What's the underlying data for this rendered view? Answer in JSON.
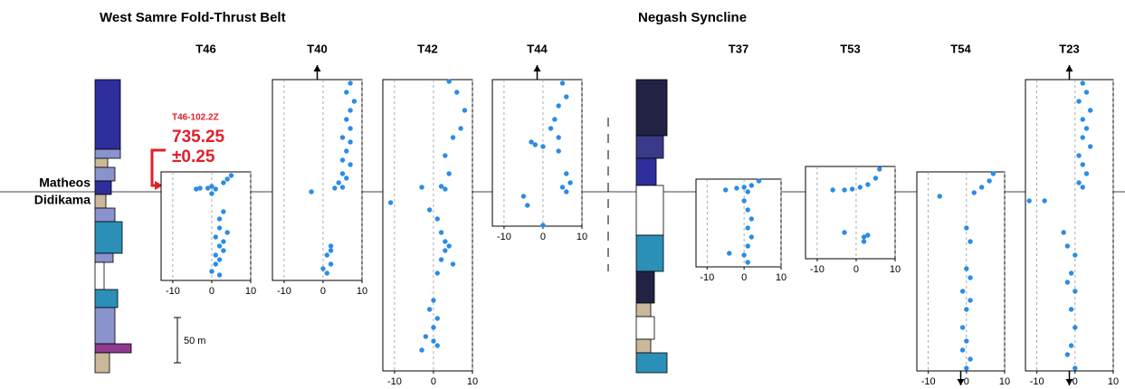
{
  "groups": [
    "West Samre Fold-Thrust Belt",
    "Negash Syncline"
  ],
  "horizon_label": [
    "Matheos",
    "Didikama"
  ],
  "scale_bar": "50 m",
  "date": {
    "sample": "T46-102.2Z",
    "age": "735.25",
    "error": "±0.25"
  },
  "chart_data": [
    {
      "type": "scatter",
      "title": "T46",
      "color": "#2b8ce6",
      "xlim": [
        -13,
        10
      ],
      "ylim": [
        -98,
        22
      ],
      "xticks": [
        -10,
        0,
        10
      ],
      "grid": true,
      "x": [
        -4,
        -3,
        -1,
        0,
        1,
        3,
        5,
        4,
        0,
        2,
        3,
        2,
        1,
        3,
        2,
        1,
        2,
        1,
        0,
        2,
        3,
        4
      ],
      "y": [
        3,
        4,
        4,
        6,
        3,
        10,
        18,
        14,
        -2,
        -30,
        -22,
        -40,
        -50,
        -55,
        -60,
        -70,
        -75,
        -80,
        -88,
        -92,
        -65,
        -45
      ]
    },
    {
      "type": "scatter",
      "title": "T40",
      "color": "#2b8ce6",
      "xlim": [
        -13,
        10
      ],
      "ylim": [
        -98,
        124
      ],
      "xticks": [
        -10,
        0,
        10
      ],
      "grid": true,
      "x": [
        7,
        6,
        8,
        7,
        6,
        7,
        5,
        7,
        6,
        5,
        7,
        5,
        6,
        4,
        5,
        3,
        -3,
        2,
        1,
        2,
        1,
        0,
        2
      ],
      "y": [
        120,
        110,
        100,
        90,
        80,
        70,
        60,
        55,
        45,
        35,
        30,
        20,
        15,
        10,
        5,
        4,
        0,
        -60,
        -70,
        -80,
        -90,
        -85,
        -65
      ]
    },
    {
      "type": "scatter",
      "title": "T42",
      "color": "#2b8ce6",
      "xlim": [
        -13,
        10
      ],
      "ylim": [
        -198,
        124
      ],
      "xticks": [
        -10,
        0,
        10
      ],
      "grid": true,
      "x": [
        4,
        6,
        8,
        7,
        5,
        3,
        4,
        2,
        -3,
        3,
        -11,
        -1,
        1,
        2,
        3,
        4,
        3,
        2,
        5,
        1,
        0,
        -1,
        1,
        0,
        -2,
        1,
        -3,
        0
      ],
      "y": [
        122,
        110,
        90,
        70,
        60,
        40,
        20,
        6,
        5,
        3,
        -12,
        -20,
        -30,
        -45,
        -55,
        -60,
        -65,
        -75,
        -80,
        -90,
        -120,
        -130,
        -140,
        -150,
        -160,
        -170,
        -175,
        -165
      ]
    },
    {
      "type": "scatter",
      "title": "T44",
      "color": "#2b8ce6",
      "xlim": [
        -13,
        10
      ],
      "ylim": [
        -38,
        124
      ],
      "xticks": [
        -10,
        0,
        10
      ],
      "grid": true,
      "x": [
        5,
        6,
        4,
        3,
        2,
        4,
        -3,
        0,
        -2,
        4,
        6,
        7,
        5,
        6,
        -5,
        -4,
        0
      ],
      "y": [
        120,
        105,
        95,
        80,
        70,
        60,
        55,
        50,
        52,
        45,
        20,
        10,
        5,
        0,
        -5,
        -15,
        -37
      ]
    },
    {
      "type": "scatter",
      "title": "T37",
      "color": "#2b8ce6",
      "xlim": [
        -13,
        10
      ],
      "ylim": [
        -83,
        14
      ],
      "xticks": [
        -10,
        0,
        10
      ],
      "grid": true,
      "x": [
        4,
        2,
        0,
        -2,
        -5,
        1,
        0,
        1,
        2,
        1,
        2,
        1,
        0,
        -4,
        1
      ],
      "y": [
        12,
        7,
        5,
        4,
        2,
        0,
        -10,
        -20,
        -30,
        -40,
        -50,
        -60,
        -70,
        -68,
        -78
      ]
    },
    {
      "type": "scatter",
      "title": "T53",
      "color": "#2b8ce6",
      "xlim": [
        -13,
        10
      ],
      "ylim": [
        -74,
        28
      ],
      "xticks": [
        -10,
        0,
        10
      ],
      "grid": true,
      "x": [
        6,
        5,
        3,
        1,
        -1,
        -3,
        -6,
        -3,
        2,
        3,
        2
      ],
      "y": [
        25,
        15,
        8,
        5,
        3,
        2,
        2,
        -45,
        -50,
        -48,
        -55
      ]
    },
    {
      "type": "scatter",
      "title": "T54",
      "color": "#2b8ce6",
      "xlim": [
        -13,
        10
      ],
      "ylim": [
        -198,
        22
      ],
      "xticks": [
        -10,
        0,
        10
      ],
      "grid": true,
      "x": [
        7,
        6,
        4,
        2,
        -7,
        0,
        1,
        0,
        1,
        -1,
        0,
        -1,
        0,
        -1,
        1,
        0,
        1
      ],
      "y": [
        20,
        12,
        5,
        -1,
        -5,
        -40,
        -55,
        -85,
        -95,
        -110,
        -130,
        -150,
        -165,
        -175,
        -185,
        -195,
        -120
      ]
    },
    {
      "type": "scatter",
      "title": "T23",
      "color": "#2b8ce6",
      "xlim": [
        -13,
        10
      ],
      "ylim": [
        -198,
        124
      ],
      "xticks": [
        -10,
        0,
        10
      ],
      "grid": true,
      "x": [
        2,
        3,
        1,
        4,
        2,
        3,
        2,
        4,
        1,
        2,
        3,
        1,
        2,
        -12,
        -8,
        -3,
        -2,
        0,
        -1,
        0,
        -2,
        -1,
        0,
        -1,
        -2,
        0
      ],
      "y": [
        120,
        110,
        100,
        90,
        80,
        70,
        60,
        50,
        40,
        30,
        20,
        10,
        5,
        -10,
        -10,
        -45,
        -60,
        -70,
        -90,
        -110,
        -100,
        -130,
        -150,
        -170,
        -180,
        -195
      ]
    }
  ]
}
